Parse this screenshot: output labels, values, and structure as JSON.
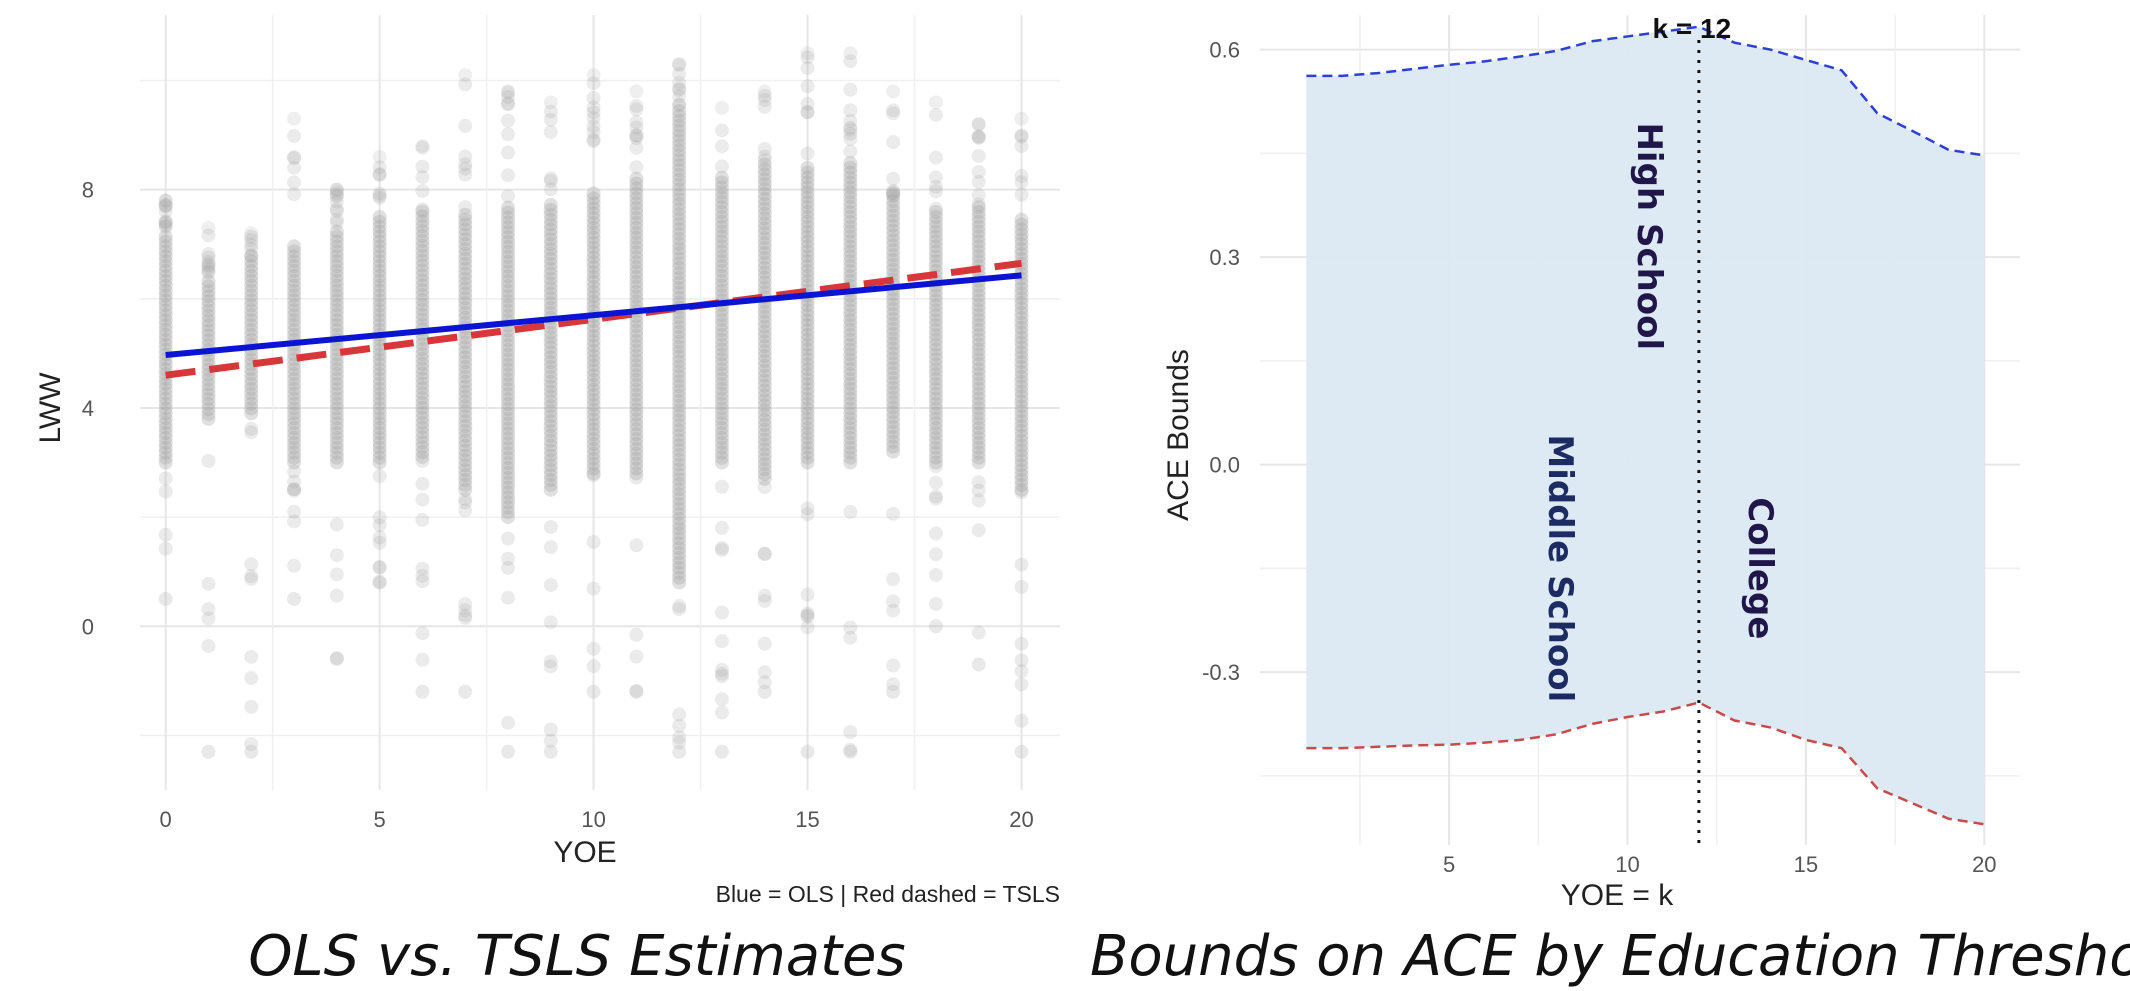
{
  "chart_data": [
    {
      "type": "scatter",
      "title": "OLS vs. TSLS Estimates",
      "xlabel": "YOE",
      "ylabel": "LWW",
      "caption": "Blue = OLS | Red dashed = TSLS",
      "xlim": [
        -0.6,
        20.9
      ],
      "ylim": [
        -3.0,
        11.2
      ],
      "x_ticks": [
        0,
        5,
        10,
        15,
        20
      ],
      "x_tick_labels": [
        "0",
        "5",
        "10",
        "15",
        "20"
      ],
      "y_ticks": [
        0,
        4,
        8
      ],
      "y_tick_labels": [
        "0",
        "4",
        "8"
      ],
      "grid": true,
      "point_color": "#a6a6a6",
      "scatter_columns": [
        {
          "x": 0,
          "core": [
            3.0,
            7.2
          ],
          "spread": [
            0.5,
            7.8
          ]
        },
        {
          "x": 1,
          "core": [
            3.8,
            6.4
          ],
          "spread": [
            -2.3,
            7.3
          ]
        },
        {
          "x": 2,
          "core": [
            3.9,
            6.8
          ],
          "spread": [
            -2.3,
            7.2
          ]
        },
        {
          "x": 3,
          "core": [
            3.0,
            7.0
          ],
          "spread": [
            0.5,
            9.3
          ]
        },
        {
          "x": 4,
          "core": [
            3.0,
            7.3
          ],
          "spread": [
            -0.6,
            8.0
          ]
        },
        {
          "x": 5,
          "core": [
            3.0,
            7.5
          ],
          "spread": [
            0.8,
            8.6
          ]
        },
        {
          "x": 6,
          "core": [
            3.1,
            7.6
          ],
          "spread": [
            -1.2,
            8.8
          ]
        },
        {
          "x": 7,
          "core": [
            2.5,
            7.6
          ],
          "spread": [
            -1.2,
            10.1
          ]
        },
        {
          "x": 8,
          "core": [
            2.0,
            7.7
          ],
          "spread": [
            -2.3,
            9.8
          ]
        },
        {
          "x": 9,
          "core": [
            2.5,
            7.8
          ],
          "spread": [
            -2.3,
            9.6
          ]
        },
        {
          "x": 10,
          "core": [
            2.8,
            8.0
          ],
          "spread": [
            -1.2,
            10.1
          ]
        },
        {
          "x": 11,
          "core": [
            2.8,
            8.2
          ],
          "spread": [
            -1.2,
            9.8
          ]
        },
        {
          "x": 12,
          "core": [
            0.8,
            9.5
          ],
          "spread": [
            -2.3,
            10.3
          ]
        },
        {
          "x": 13,
          "core": [
            3.0,
            8.3
          ],
          "spread": [
            -2.3,
            9.5
          ]
        },
        {
          "x": 14,
          "core": [
            2.7,
            8.5
          ],
          "spread": [
            -1.2,
            9.8
          ]
        },
        {
          "x": 15,
          "core": [
            3.0,
            8.4
          ],
          "spread": [
            -2.3,
            10.5
          ]
        },
        {
          "x": 16,
          "core": [
            3.0,
            8.5
          ],
          "spread": [
            -2.3,
            10.5
          ]
        },
        {
          "x": 17,
          "core": [
            3.2,
            7.9
          ],
          "spread": [
            -1.2,
            9.8
          ]
        },
        {
          "x": 18,
          "core": [
            3.0,
            7.6
          ],
          "spread": [
            0.0,
            9.6
          ]
        },
        {
          "x": 19,
          "core": [
            3.0,
            7.7
          ],
          "spread": [
            -0.7,
            9.2
          ]
        },
        {
          "x": 20,
          "core": [
            2.5,
            7.5
          ],
          "spread": [
            -2.3,
            9.3
          ]
        }
      ],
      "series": [
        {
          "name": "OLS",
          "style": "solid",
          "color": "#0a14d2",
          "x": [
            0,
            20
          ],
          "y": [
            4.97,
            6.43
          ]
        },
        {
          "name": "TSLS",
          "style": "dashed",
          "color": "#d8373a",
          "x": [
            0,
            20
          ],
          "y": [
            4.6,
            6.65
          ]
        }
      ]
    },
    {
      "type": "area",
      "title": "Bounds on ACE by Education Threshold",
      "xlabel": "YOE = k",
      "ylabel": "ACE Bounds",
      "xlim": [
        -0.3,
        21.0
      ],
      "ylim": [
        -0.55,
        0.65
      ],
      "x_ticks": [
        5,
        10,
        15,
        20
      ],
      "x_tick_labels": [
        "5",
        "10",
        "15",
        "20"
      ],
      "y_ticks": [
        -0.3,
        0.0,
        0.3,
        0.6
      ],
      "y_tick_labels": [
        "-0.3",
        "0.0",
        "0.3",
        "0.6"
      ],
      "grid": true,
      "band_color": "#dce9f2",
      "x": [
        1,
        2,
        3,
        4,
        5,
        6,
        7,
        8,
        9,
        10,
        11,
        12,
        13,
        14,
        15,
        16,
        17,
        18,
        19,
        20
      ],
      "series": [
        {
          "name": "upper",
          "style": "dashed",
          "color": "#2c3fd6",
          "y": [
            0.562,
            0.562,
            0.566,
            0.572,
            0.578,
            0.583,
            0.59,
            0.598,
            0.612,
            0.619,
            0.626,
            0.633,
            0.61,
            0.6,
            0.585,
            0.57,
            0.508,
            0.482,
            0.455,
            0.447
          ]
        },
        {
          "name": "lower",
          "style": "dashed",
          "color": "#c84a4a",
          "y": [
            -0.41,
            -0.41,
            -0.408,
            -0.406,
            -0.405,
            -0.402,
            -0.398,
            -0.39,
            -0.375,
            -0.365,
            -0.357,
            -0.344,
            -0.37,
            -0.38,
            -0.398,
            -0.41,
            -0.468,
            -0.49,
            -0.512,
            -0.52
          ]
        }
      ],
      "reference_line": {
        "x": 12,
        "label": "k = 12"
      },
      "region_labels": [
        {
          "text": "Middle School",
          "color": "#1d2b63"
        },
        {
          "text": "High School",
          "color": "#20164a"
        },
        {
          "text": "College",
          "color": "#20164a"
        }
      ]
    }
  ]
}
